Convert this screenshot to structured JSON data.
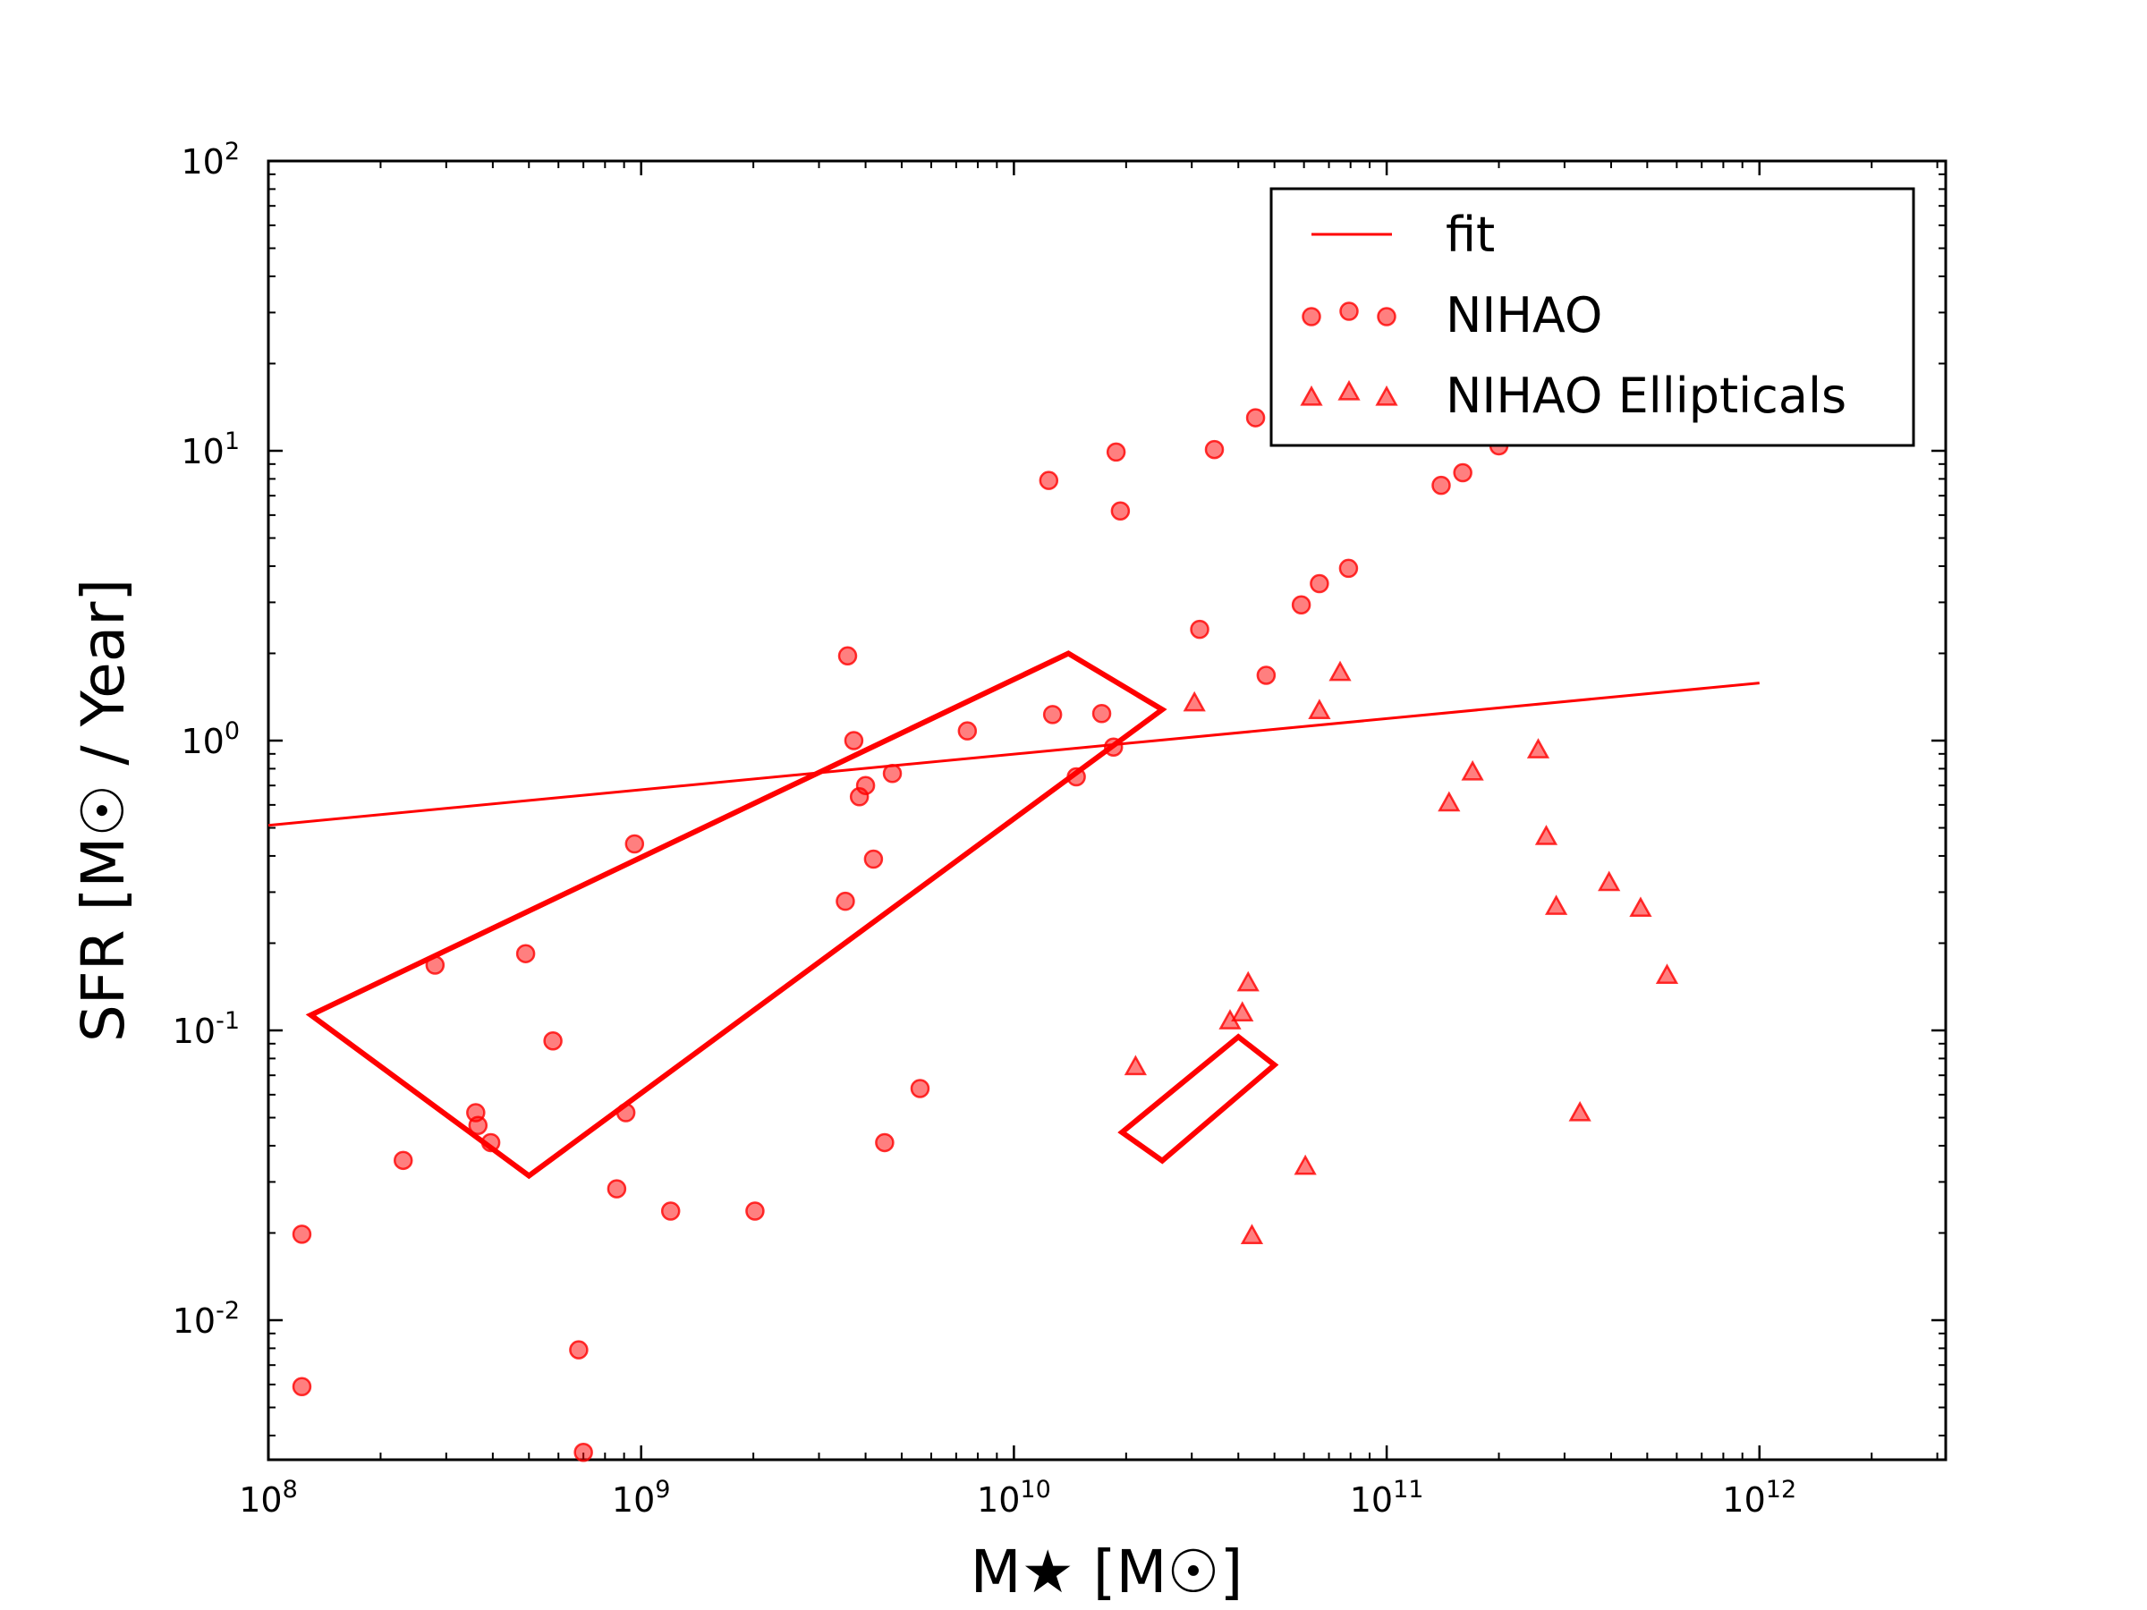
{
  "chart_data": {
    "type": "scatter",
    "xscale": "log",
    "yscale": "log",
    "xlim": [
      100000000.0,
      3160000000000.0
    ],
    "ylim": [
      0.0033,
      100
    ],
    "xlabel": "M★ [M☉]",
    "ylabel": "SFR [M☉ / Year]",
    "x_ticks": [
      {
        "base": "10",
        "exp": "8",
        "value": 100000000.0
      },
      {
        "base": "10",
        "exp": "9",
        "value": 1000000000.0
      },
      {
        "base": "10",
        "exp": "10",
        "value": 10000000000.0
      },
      {
        "base": "10",
        "exp": "11",
        "value": 100000000000.0
      },
      {
        "base": "10",
        "exp": "12",
        "value": 1000000000000.0
      }
    ],
    "y_ticks": [
      {
        "base": "10",
        "exp": "2",
        "value": 100
      },
      {
        "base": "10",
        "exp": "1",
        "value": 10
      },
      {
        "base": "10",
        "exp": "0",
        "value": 1
      },
      {
        "base": "10",
        "exp": "-1",
        "value": 0.1
      },
      {
        "base": "10",
        "exp": "-2",
        "value": 0.01
      }
    ],
    "fit": {
      "name": "fit",
      "color": "#ff0000",
      "x": [
        100000000.0,
        1000000000000.0
      ],
      "y": [
        0.51,
        1.58
      ]
    },
    "series": [
      {
        "name": "NIHAO",
        "marker": "circle",
        "color": "#ff0000",
        "points": [
          [
            123000000.0,
            0.0198
          ],
          [
            123000000.0,
            0.0059
          ],
          [
            230000000.0,
            0.0356
          ],
          [
            280000000.0,
            0.168
          ],
          [
            360000000.0,
            0.052
          ],
          [
            365000000.0,
            0.047
          ],
          [
            395000000.0,
            0.041
          ],
          [
            490000000.0,
            0.184
          ],
          [
            580000000.0,
            0.092
          ],
          [
            680000000.0,
            0.0079
          ],
          [
            700000000.0,
            0.0035
          ],
          [
            860000000.0,
            0.0284
          ],
          [
            910000000.0,
            0.052
          ],
          [
            960000000.0,
            0.44
          ],
          [
            1200000000.0,
            0.0238
          ],
          [
            2020000000.0,
            0.0238
          ],
          [
            3530000000.0,
            0.279
          ],
          [
            3580000000.0,
            1.96
          ],
          [
            3720000000.0,
            1.0
          ],
          [
            3850000000.0,
            0.64
          ],
          [
            4000000000.0,
            0.7
          ],
          [
            4200000000.0,
            0.39
          ],
          [
            4500000000.0,
            0.041
          ],
          [
            4720000000.0,
            0.77
          ],
          [
            5600000000.0,
            0.063
          ],
          [
            7500000000.0,
            1.08
          ],
          [
            12400000000.0,
            7.9
          ],
          [
            12700000000.0,
            1.23
          ],
          [
            14700000000.0,
            0.75
          ],
          [
            17200000000.0,
            1.24
          ],
          [
            18500000000.0,
            0.95
          ],
          [
            18800000000.0,
            9.9
          ],
          [
            19300000000.0,
            6.2
          ],
          [
            31500000000.0,
            2.42
          ],
          [
            34500000000.0,
            10.1
          ],
          [
            44500000000.0,
            13.0
          ],
          [
            47500000000.0,
            1.68
          ],
          [
            59000000000.0,
            2.94
          ],
          [
            66000000000.0,
            3.48
          ],
          [
            79000000000.0,
            3.93
          ],
          [
            140000000000.0,
            7.6
          ],
          [
            160000000000.0,
            8.4
          ],
          [
            200000000000.0,
            10.4
          ]
        ]
      },
      {
        "name": "NIHAO Ellipticals",
        "marker": "triangle",
        "color": "#ff0000",
        "points": [
          [
            21200000000.0,
            0.075
          ],
          [
            30500000000.0,
            1.35
          ],
          [
            38000000000.0,
            0.108
          ],
          [
            41000000000.0,
            0.115
          ],
          [
            42500000000.0,
            0.146
          ],
          [
            43500000000.0,
            0.0196
          ],
          [
            60500000000.0,
            0.034
          ],
          [
            66000000000.0,
            1.27
          ],
          [
            75000000000.0,
            1.72
          ],
          [
            147000000000.0,
            0.61
          ],
          [
            170000000000.0,
            0.78
          ],
          [
            255000000000.0,
            0.93
          ],
          [
            268000000000.0,
            0.467
          ],
          [
            285000000000.0,
            0.268
          ],
          [
            330000000000.0,
            0.052
          ],
          [
            395000000000.0,
            0.324
          ],
          [
            480000000000.0,
            0.264
          ],
          [
            565000000000.0,
            0.155
          ]
        ]
      }
    ],
    "annotations": [
      {
        "shape": "polygon",
        "color": "#ff0000",
        "vertices": [
          [
            130000000.0,
            0.113
          ],
          [
            14000000000.0,
            2.0
          ],
          [
            25000000000.0,
            1.28
          ],
          [
            500000000.0,
            0.0315
          ]
        ]
      },
      {
        "shape": "polygon",
        "color": "#ff0000",
        "vertices": [
          [
            19500000000.0,
            0.0445
          ],
          [
            40000000000.0,
            0.095
          ],
          [
            50000000000.0,
            0.076
          ],
          [
            25000000000.0,
            0.0355
          ]
        ]
      }
    ],
    "legend": {
      "position": "top-right",
      "entries": [
        {
          "label": "fit",
          "marker": "line"
        },
        {
          "label": "NIHAO",
          "marker": "circle"
        },
        {
          "label": "NIHAO Ellipticals",
          "marker": "triangle"
        }
      ]
    }
  }
}
